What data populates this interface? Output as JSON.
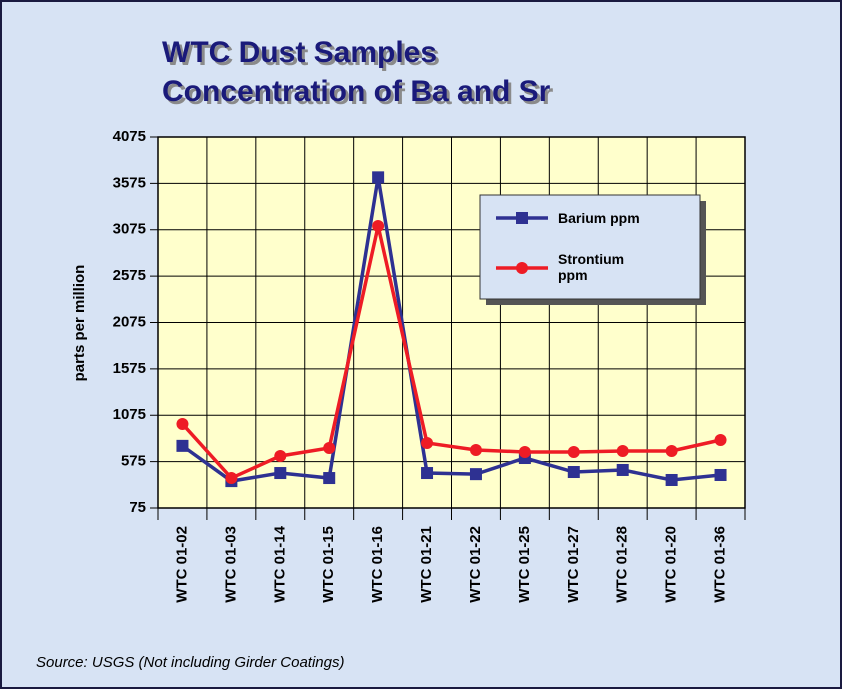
{
  "chart_data": {
    "type": "line",
    "title": [
      "WTC Dust Samples",
      "Concentration of Ba and Sr"
    ],
    "y_label": "parts per million",
    "source": "Source:  USGS  (Not including Girder Coatings)",
    "categories": [
      "WTC 01-02",
      "WTC 01-03",
      "WTC 01-14",
      "WTC 01-15",
      "WTC 01-16",
      "WTC 01-21",
      "WTC 01-22",
      "WTC 01-25",
      "WTC 01-27",
      "WTC 01-28",
      "WTC 01-20",
      "WTC 01-36"
    ],
    "series": [
      {
        "name": "Barium ppm",
        "color": "#2e3192",
        "marker": "square",
        "values": [
          745,
          365,
          452,
          398,
          3640,
          452,
          440,
          614,
          463,
          485,
          377,
          431
        ]
      },
      {
        "name": "Strontium ppm",
        "color": "#ee1c25",
        "marker": "circle",
        "values": [
          981,
          398,
          636,
          722,
          3115,
          776,
          700,
          679,
          679,
          690,
          690,
          808
        ]
      }
    ],
    "ylim": [
      75,
      4075
    ],
    "yticks": [
      75,
      575,
      1075,
      1575,
      2075,
      2575,
      3075,
      3575,
      4075
    ],
    "grid": true
  }
}
